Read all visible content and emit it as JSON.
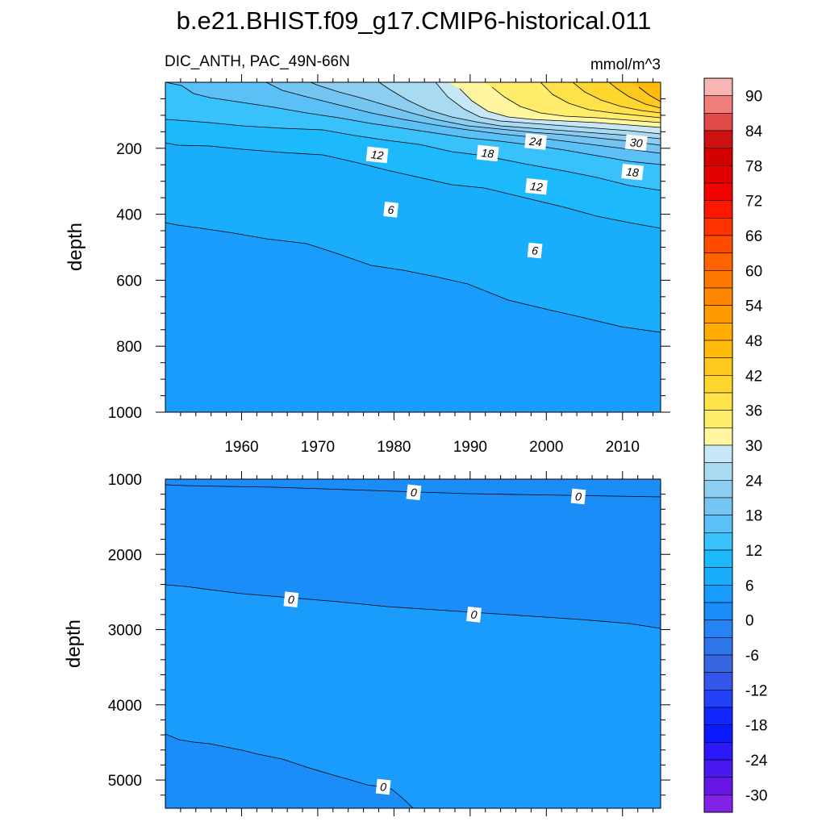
{
  "title": "b.e21.BHIST.f09_g17.CMIP6-historical.011",
  "subtitle_left": "DIC_ANTH, PAC_49N-66N",
  "subtitle_right": "mmol/m^3",
  "chart_data": [
    {
      "type": "contour",
      "panel": "upper",
      "xlabel": "",
      "ylabel": "depth",
      "xlim": [
        1950,
        2015
      ],
      "ylim": [
        0,
        1000
      ],
      "y_inverted": true,
      "x_ticks": [
        1960,
        1970,
        1980,
        1990,
        2000,
        2010
      ],
      "x_tick_labels": [
        "1960",
        "1970",
        "1980",
        "1990",
        "2000",
        "2010"
      ],
      "y_ticks": [
        200,
        400,
        600,
        800,
        1000
      ],
      "y_tick_labels": [
        "200",
        "400",
        "600",
        "800",
        "1000"
      ],
      "contour_labels": [
        {
          "text": "12",
          "year": 1977.8,
          "depth": 220
        },
        {
          "text": "18",
          "year": 1992.3,
          "depth": 215
        },
        {
          "text": "24",
          "year": 1998.6,
          "depth": 180
        },
        {
          "text": "30",
          "year": 2011.8,
          "depth": 183
        },
        {
          "text": "18",
          "year": 2011.3,
          "depth": 272
        },
        {
          "text": "12",
          "year": 1998.7,
          "depth": 316
        },
        {
          "text": "6",
          "year": 1979.6,
          "depth": 386
        },
        {
          "text": "6",
          "year": 1998.5,
          "depth": 510
        }
      ]
    },
    {
      "type": "contour",
      "panel": "lower",
      "xlabel": "",
      "ylabel": "depth",
      "xlim": [
        1950,
        2015
      ],
      "ylim": [
        1000,
        5375
      ],
      "y_inverted": true,
      "x_ticks": [
        1960,
        1970,
        1980,
        1990,
        2000,
        2010
      ],
      "x_tick_labels": [],
      "y_ticks": [
        1000,
        2000,
        3000,
        4000,
        5000
      ],
      "y_tick_labels": [
        "1000",
        "2000",
        "3000",
        "4000",
        "5000"
      ],
      "contour_labels": [
        {
          "text": "0",
          "year": 1982.6,
          "depth": 1175
        },
        {
          "text": "0",
          "year": 2004.2,
          "depth": 1230
        },
        {
          "text": "0",
          "year": 1966.5,
          "depth": 2600
        },
        {
          "text": "0",
          "year": 1990.5,
          "depth": 2800
        },
        {
          "text": "0",
          "year": 1978.6,
          "depth": 5090
        }
      ]
    }
  ],
  "colorbar": {
    "labels": [
      "90",
      "84",
      "78",
      "72",
      "66",
      "60",
      "54",
      "48",
      "42",
      "36",
      "30",
      "24",
      "18",
      "12",
      "6",
      "0",
      "-6",
      "-12",
      "-18",
      "-24",
      "-30"
    ],
    "colors_top_to_bottom": [
      "#f9b4b4",
      "#f07c7c",
      "#e14848",
      "#cf1010",
      "#d40000",
      "#e30000",
      "#f40000",
      "#ff1600",
      "#ff3300",
      "#ff4b00",
      "#ff6200",
      "#ff7800",
      "#ff8800",
      "#ff9a00",
      "#ffab00",
      "#ffbb0a",
      "#ffc81c",
      "#ffd62e",
      "#ffe14a",
      "#ffec6a",
      "#fff6a0",
      "#c7e7f6",
      "#a8daf2",
      "#8dcdef",
      "#75c5f2",
      "#5bc0f6",
      "#38c1fa",
      "#1cbafc",
      "#19adfb",
      "#1a9cfd",
      "#1b8df9",
      "#2583f3",
      "#2d75ea",
      "#3866e0",
      "#3556eb",
      "#2240f6",
      "#1227fe",
      "#0a1afe",
      "#2b19fa",
      "#4a18f0",
      "#6617e6",
      "#8222e6"
    ]
  }
}
